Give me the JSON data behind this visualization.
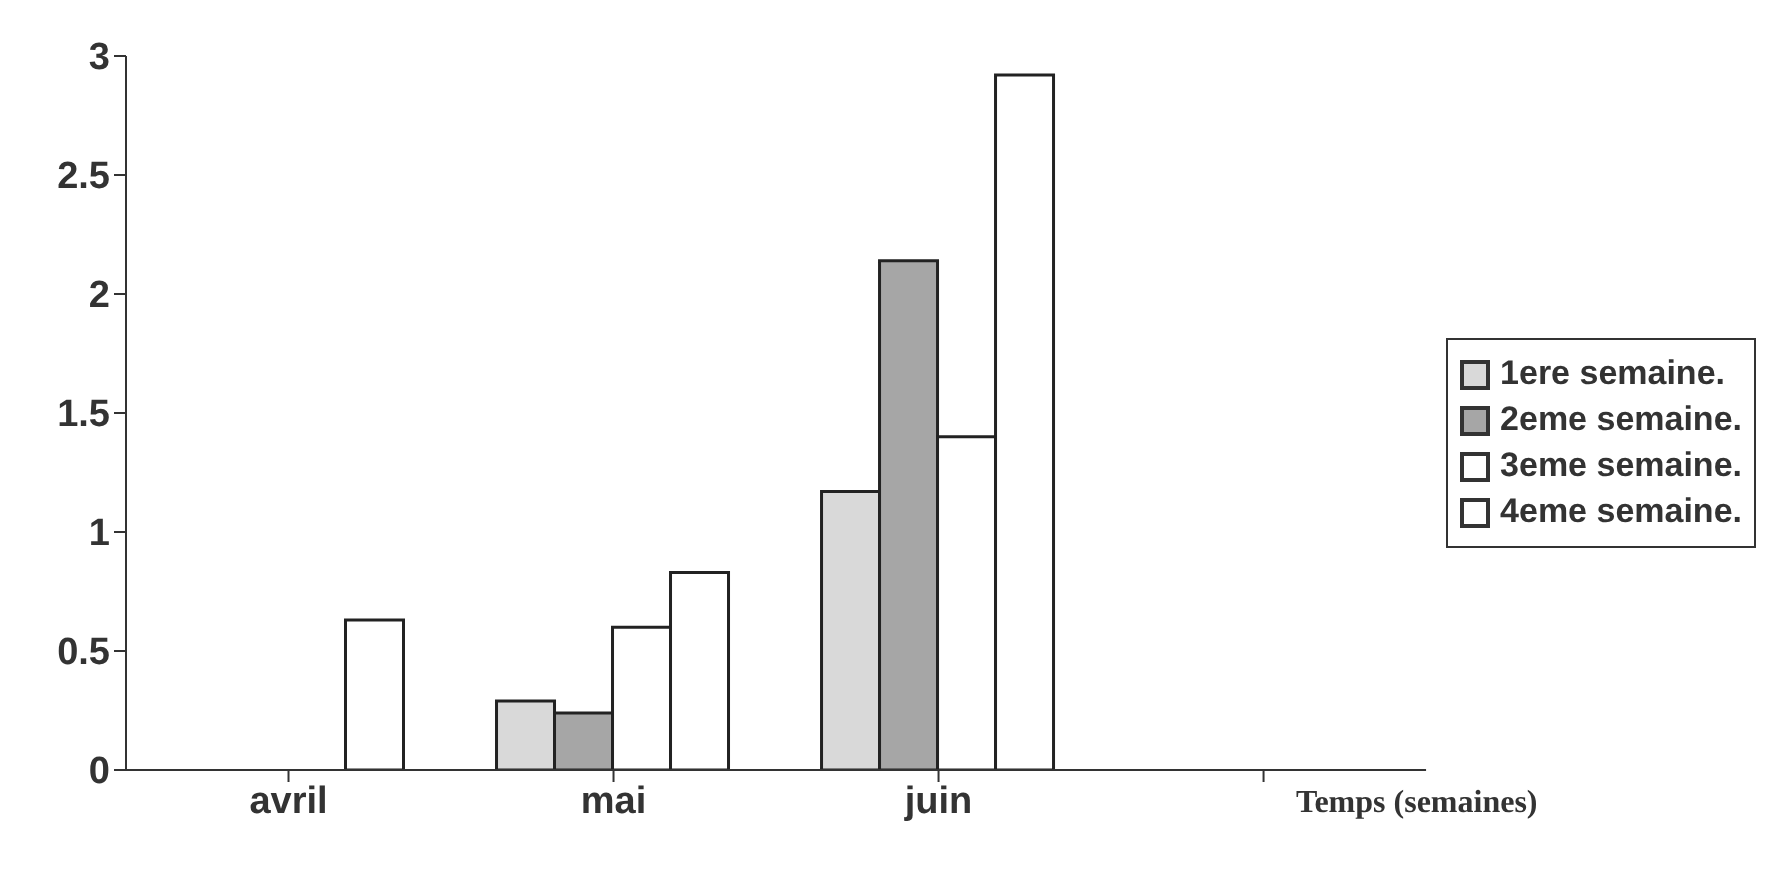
{
  "chart_data": {
    "type": "bar",
    "xlabel": "Temps (semaines)",
    "categories": [
      "avril",
      "mai",
      "juin",
      null
    ],
    "series": [
      {
        "name": "1ere semaine.",
        "color": "#d9d9d9",
        "values": [
          0,
          0.29,
          1.17,
          0
        ]
      },
      {
        "name": "2eme semaine.",
        "color": "#a6a6a6",
        "values": [
          0,
          0.24,
          2.14,
          0
        ]
      },
      {
        "name": "3eme semaine.",
        "color": "#ffffff",
        "values": [
          0,
          0.6,
          1.4,
          0
        ]
      },
      {
        "name": "4eme semaine.",
        "color": "#ffffff",
        "values": [
          0.63,
          0.83,
          2.92,
          0
        ]
      }
    ],
    "ylim": [
      0,
      3
    ],
    "yticks": [
      0,
      0.5,
      1,
      1.5,
      2,
      2.5,
      3
    ],
    "grid": false,
    "legend": "right"
  }
}
